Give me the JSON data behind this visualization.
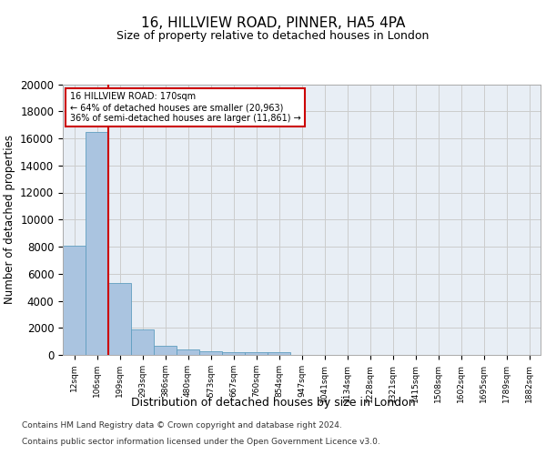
{
  "title_line1": "16, HILLVIEW ROAD, PINNER, HA5 4PA",
  "title_line2": "Size of property relative to detached houses in London",
  "xlabel": "Distribution of detached houses by size in London",
  "ylabel": "Number of detached properties",
  "categories": [
    "12sqm",
    "106sqm",
    "199sqm",
    "293sqm",
    "386sqm",
    "480sqm",
    "573sqm",
    "667sqm",
    "760sqm",
    "854sqm",
    "947sqm",
    "1041sqm",
    "1134sqm",
    "1228sqm",
    "1321sqm",
    "1415sqm",
    "1508sqm",
    "1602sqm",
    "1695sqm",
    "1789sqm",
    "1882sqm"
  ],
  "bar_heights": [
    8100,
    16500,
    5300,
    1850,
    700,
    370,
    270,
    195,
    180,
    220,
    0,
    0,
    0,
    0,
    0,
    0,
    0,
    0,
    0,
    0,
    0
  ],
  "bar_color": "#aac4e0",
  "bar_edge_color": "#5f9ec0",
  "annotation_box_text": "16 HILLVIEW ROAD: 170sqm\n← 64% of detached houses are smaller (20,963)\n36% of semi-detached houses are larger (11,861) →",
  "annotation_box_color": "#ffffff",
  "annotation_box_edge_color": "#cc0000",
  "vertical_line_x": 1.5,
  "vertical_line_color": "#cc0000",
  "ylim": [
    0,
    20000
  ],
  "yticks": [
    0,
    2000,
    4000,
    6000,
    8000,
    10000,
    12000,
    14000,
    16000,
    18000,
    20000
  ],
  "grid_color": "#cccccc",
  "background_color": "#ffffff",
  "plot_bg_color": "#e8eef5",
  "footer_line1": "Contains HM Land Registry data © Crown copyright and database right 2024.",
  "footer_line2": "Contains public sector information licensed under the Open Government Licence v3.0."
}
